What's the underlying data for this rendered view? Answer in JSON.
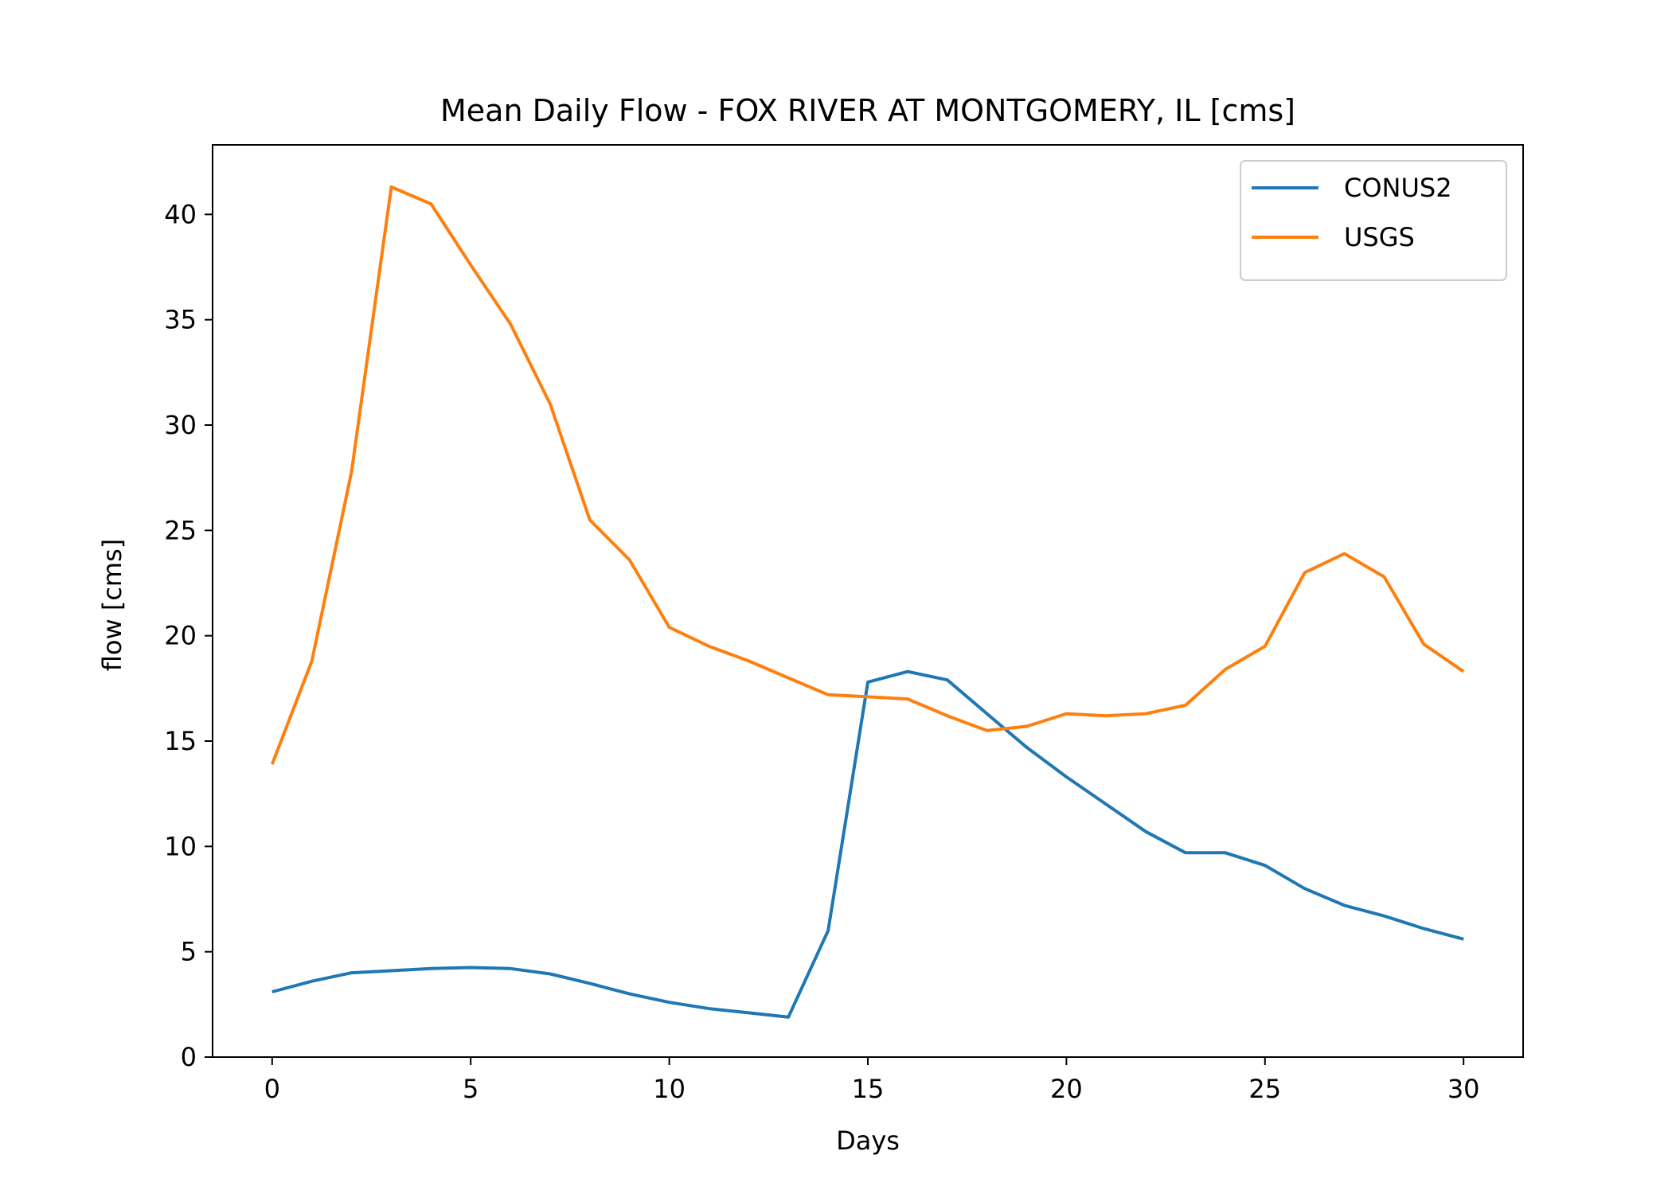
{
  "chart_data": {
    "type": "line",
    "title": "Mean Daily Flow - FOX RIVER AT MONTGOMERY, IL [cms]",
    "xlabel": "Days",
    "ylabel": "flow [cms]",
    "xlim": [
      -1.5,
      31.5
    ],
    "ylim": [
      0,
      43.3
    ],
    "xticks": [
      0,
      5,
      10,
      15,
      20,
      25,
      30
    ],
    "yticks": [
      0,
      5,
      10,
      15,
      20,
      25,
      30,
      35,
      40
    ],
    "grid": false,
    "legend_position": "top-right",
    "x": [
      0,
      1,
      2,
      3,
      4,
      5,
      6,
      7,
      8,
      9,
      10,
      11,
      12,
      13,
      14,
      15,
      16,
      17,
      18,
      19,
      20,
      21,
      22,
      23,
      24,
      25,
      26,
      27,
      28,
      29,
      30
    ],
    "series": [
      {
        "name": "CONUS2",
        "color": "#1f77b4",
        "values": [
          3.1,
          3.6,
          4.0,
          4.1,
          4.2,
          4.25,
          4.2,
          3.95,
          3.5,
          3.0,
          2.6,
          2.3,
          2.1,
          1.9,
          6.0,
          17.8,
          18.3,
          17.9,
          16.3,
          14.7,
          13.3,
          12.0,
          10.7,
          9.7,
          9.7,
          9.1,
          8.0,
          7.2,
          6.7,
          6.1,
          5.6
        ]
      },
      {
        "name": "USGS",
        "color": "#ff7f0e",
        "values": [
          13.9,
          18.8,
          27.8,
          41.3,
          40.5,
          37.6,
          34.8,
          31.0,
          25.5,
          23.6,
          20.4,
          19.5,
          18.8,
          18.0,
          17.2,
          17.1,
          17.0,
          16.2,
          15.5,
          15.7,
          16.3,
          16.2,
          16.3,
          16.7,
          18.4,
          19.5,
          23.0,
          23.9,
          22.8,
          19.6,
          18.3
        ]
      }
    ]
  }
}
